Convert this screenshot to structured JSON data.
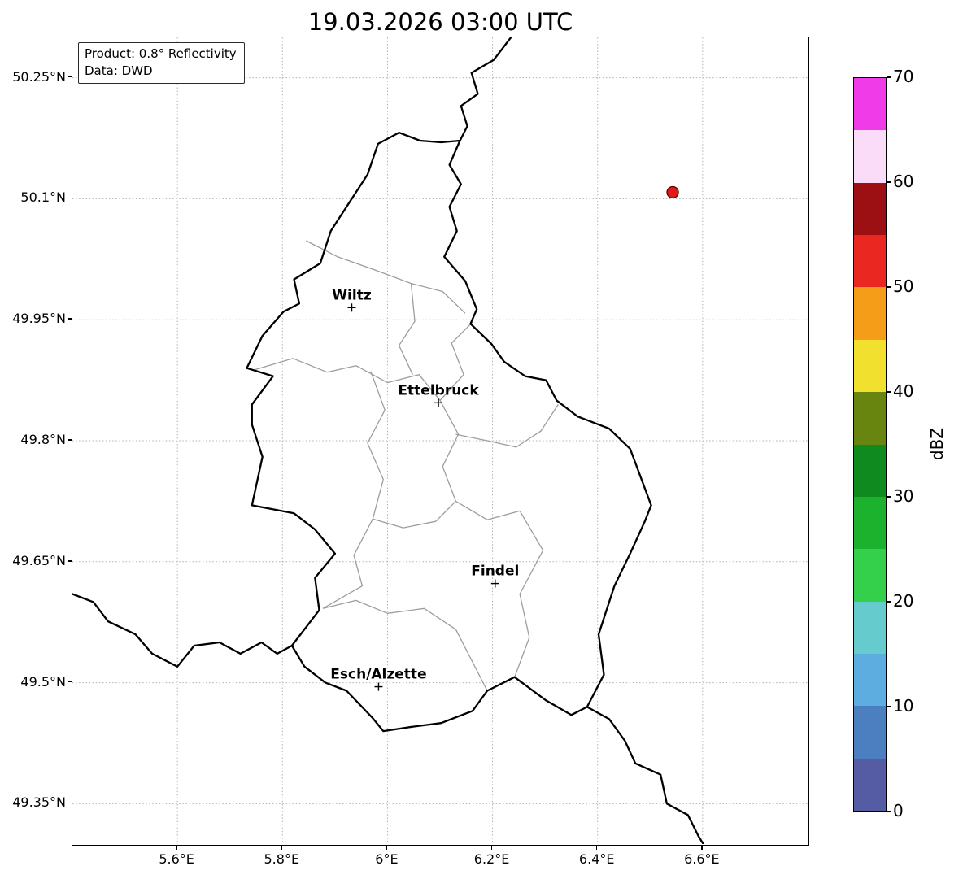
{
  "title": "19.03.2026 03:00 UTC",
  "info_box": {
    "line1": "Product: 0.8° Reflectivity",
    "line2": "Data: DWD"
  },
  "axes": {
    "lon_range": [
      5.4,
      6.8
    ],
    "lat_range": [
      49.3,
      50.3
    ],
    "x_ticks": [
      {
        "value": 5.6,
        "label": "5.6°E"
      },
      {
        "value": 5.8,
        "label": "5.8°E"
      },
      {
        "value": 6.0,
        "label": "6°E"
      },
      {
        "value": 6.2,
        "label": "6.2°E"
      },
      {
        "value": 6.4,
        "label": "6.4°E"
      },
      {
        "value": 6.6,
        "label": "6.6°E"
      }
    ],
    "y_ticks": [
      {
        "value": 50.25,
        "label": "50.25°N"
      },
      {
        "value": 50.1,
        "label": "50.1°N"
      },
      {
        "value": 49.95,
        "label": "49.95°N"
      },
      {
        "value": 49.8,
        "label": "49.8°N"
      },
      {
        "value": 49.65,
        "label": "49.65°N"
      },
      {
        "value": 49.5,
        "label": "49.5°N"
      },
      {
        "value": 49.35,
        "label": "49.35°N"
      }
    ],
    "grid_style": "dotted",
    "grid_color": "#b0b0b0"
  },
  "cities": [
    {
      "name": "Wiltz",
      "lon": 5.932,
      "lat": 49.965
    },
    {
      "name": "Ettelbruck",
      "lon": 6.097,
      "lat": 49.847
    },
    {
      "name": "Findel",
      "lon": 6.205,
      "lat": 49.623
    },
    {
      "name": "Esch/Alzette",
      "lon": 5.983,
      "lat": 49.495
    }
  ],
  "radar_points": [
    {
      "lon": 6.543,
      "lat": 50.108,
      "dbz": 52,
      "fill": "#e31a1c",
      "edge": "#5c0000"
    }
  ],
  "colorbar": {
    "label": "dBZ",
    "min": 0,
    "max": 70,
    "ticks": [
      0,
      10,
      20,
      30,
      40,
      50,
      60,
      70
    ],
    "colors_bottom_to_top": [
      "#565ca3",
      "#4c7fc0",
      "#5dade0",
      "#66cbcd",
      "#35d04b",
      "#1cb22e",
      "#0e8a1f",
      "#68860f",
      "#f1e02e",
      "#f59d18",
      "#eb2722",
      "#9c1013",
      "#fadcf8",
      "#ef3ce8"
    ]
  },
  "map": {
    "country_border": [
      [
        6.138,
        50.172
      ],
      [
        6.118,
        50.142
      ],
      [
        6.14,
        50.118
      ],
      [
        6.118,
        50.09
      ],
      [
        6.132,
        50.06
      ],
      [
        6.108,
        50.028
      ],
      [
        6.148,
        49.998
      ],
      [
        6.17,
        49.963
      ],
      [
        6.158,
        49.945
      ],
      [
        6.198,
        49.92
      ],
      [
        6.222,
        49.898
      ],
      [
        6.262,
        49.88
      ],
      [
        6.302,
        49.875
      ],
      [
        6.322,
        49.85
      ],
      [
        6.362,
        49.83
      ],
      [
        6.422,
        49.815
      ],
      [
        6.462,
        49.79
      ],
      [
        6.502,
        49.72
      ],
      [
        6.49,
        49.7
      ],
      [
        6.462,
        49.66
      ],
      [
        6.432,
        49.62
      ],
      [
        6.402,
        49.56
      ],
      [
        6.412,
        49.51
      ],
      [
        6.38,
        49.47
      ],
      [
        6.35,
        49.46
      ],
      [
        6.302,
        49.478
      ],
      [
        6.242,
        49.507
      ],
      [
        6.19,
        49.49
      ],
      [
        6.162,
        49.465
      ],
      [
        6.102,
        49.45
      ],
      [
        6.042,
        49.445
      ],
      [
        5.992,
        49.44
      ],
      [
        5.972,
        49.456
      ],
      [
        5.922,
        49.49
      ],
      [
        5.882,
        49.5
      ],
      [
        5.842,
        49.52
      ],
      [
        5.818,
        49.546
      ],
      [
        5.87,
        49.59
      ],
      [
        5.862,
        49.63
      ],
      [
        5.9,
        49.66
      ],
      [
        5.862,
        49.69
      ],
      [
        5.822,
        49.71
      ],
      [
        5.742,
        49.72
      ],
      [
        5.762,
        49.78
      ],
      [
        5.742,
        49.82
      ],
      [
        5.742,
        49.845
      ],
      [
        5.782,
        49.88
      ],
      [
        5.732,
        49.89
      ],
      [
        5.762,
        49.93
      ],
      [
        5.802,
        49.96
      ],
      [
        5.832,
        49.97
      ],
      [
        5.822,
        50.0
      ],
      [
        5.872,
        50.02
      ],
      [
        5.892,
        50.06
      ],
      [
        5.962,
        50.13
      ],
      [
        5.982,
        50.168
      ],
      [
        6.022,
        50.182
      ],
      [
        6.062,
        50.172
      ],
      [
        6.102,
        50.17
      ]
    ],
    "external_borders": [
      [
        [
          6.138,
          50.172
        ],
        [
          6.152,
          50.19
        ],
        [
          6.14,
          50.215
        ],
        [
          6.172,
          50.23
        ],
        [
          6.16,
          50.256
        ],
        [
          6.202,
          50.272
        ],
        [
          6.235,
          50.3
        ]
      ],
      [
        [
          6.38,
          49.47
        ],
        [
          6.422,
          49.455
        ],
        [
          6.452,
          49.428
        ],
        [
          6.472,
          49.4
        ],
        [
          6.52,
          49.386
        ],
        [
          6.532,
          49.35
        ],
        [
          6.572,
          49.336
        ],
        [
          6.592,
          49.31
        ],
        [
          6.605,
          49.296
        ]
      ],
      [
        [
          5.4,
          49.61
        ],
        [
          5.44,
          49.6
        ],
        [
          5.468,
          49.576
        ],
        [
          5.52,
          49.56
        ],
        [
          5.552,
          49.536
        ],
        [
          5.6,
          49.52
        ],
        [
          5.632,
          49.546
        ],
        [
          5.68,
          49.55
        ],
        [
          5.72,
          49.536
        ],
        [
          5.76,
          49.55
        ],
        [
          5.79,
          49.536
        ],
        [
          5.818,
          49.546
        ]
      ]
    ],
    "district_borders": [
      [
        [
          5.845,
          50.048
        ],
        [
          5.905,
          50.028
        ],
        [
          5.975,
          50.012
        ],
        [
          6.045,
          49.995
        ],
        [
          6.105,
          49.985
        ],
        [
          6.148,
          49.958
        ]
      ],
      [
        [
          5.747,
          49.888
        ],
        [
          5.82,
          49.902
        ],
        [
          5.885,
          49.885
        ],
        [
          5.94,
          49.893
        ],
        [
          6.0,
          49.872
        ],
        [
          6.06,
          49.882
        ],
        [
          6.1,
          49.85
        ]
      ],
      [
        [
          6.1,
          49.85
        ],
        [
          6.145,
          49.882
        ],
        [
          6.122,
          49.921
        ],
        [
          6.162,
          49.947
        ]
      ],
      [
        [
          5.968,
          49.886
        ],
        [
          5.995,
          49.838
        ],
        [
          5.962,
          49.797
        ],
        [
          5.992,
          49.752
        ],
        [
          5.972,
          49.703
        ]
      ],
      [
        [
          6.1,
          49.85
        ],
        [
          6.135,
          49.808
        ],
        [
          6.105,
          49.768
        ],
        [
          6.13,
          49.725
        ]
      ],
      [
        [
          6.13,
          49.808
        ],
        [
          6.19,
          49.8
        ],
        [
          6.245,
          49.792
        ],
        [
          6.292,
          49.812
        ],
        [
          6.325,
          49.845
        ]
      ],
      [
        [
          5.972,
          49.703
        ],
        [
          6.03,
          49.692
        ],
        [
          6.092,
          49.7
        ],
        [
          6.13,
          49.725
        ],
        [
          6.19,
          49.702
        ],
        [
          6.252,
          49.713
        ]
      ],
      [
        [
          6.252,
          49.713
        ],
        [
          6.296,
          49.664
        ],
        [
          6.252,
          49.61
        ],
        [
          6.27,
          49.556
        ],
        [
          6.242,
          49.507
        ]
      ],
      [
        [
          5.877,
          49.592
        ],
        [
          5.94,
          49.602
        ],
        [
          6.0,
          49.586
        ],
        [
          6.07,
          49.592
        ],
        [
          6.13,
          49.566
        ],
        [
          6.19,
          49.49
        ]
      ],
      [
        [
          5.972,
          49.703
        ],
        [
          5.936,
          49.658
        ],
        [
          5.952,
          49.62
        ],
        [
          5.877,
          49.592
        ]
      ],
      [
        [
          6.045,
          49.995
        ],
        [
          6.052,
          49.948
        ],
        [
          6.022,
          49.918
        ],
        [
          6.048,
          49.882
        ]
      ]
    ]
  }
}
